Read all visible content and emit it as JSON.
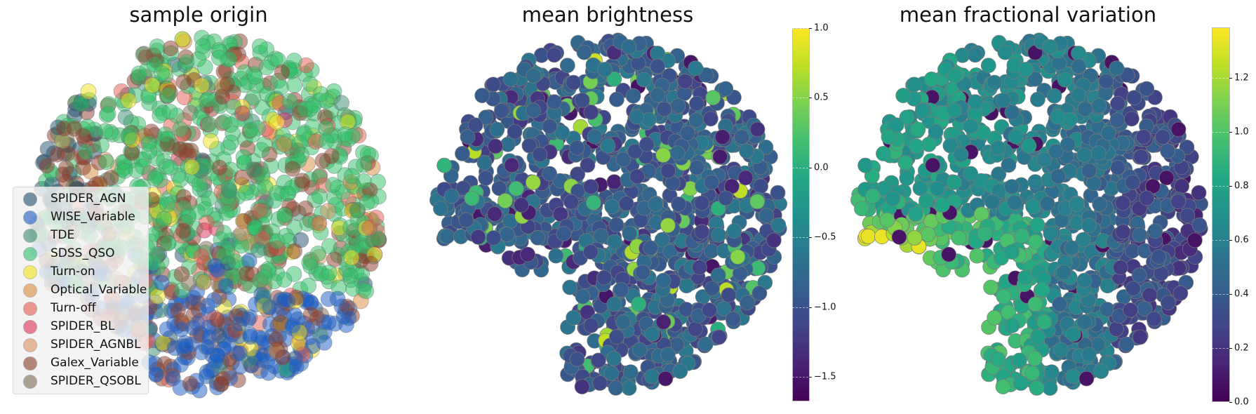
{
  "figure": {
    "panels": [
      {
        "title": "sample origin"
      },
      {
        "title": "mean brightness"
      },
      {
        "title": "mean fractional variation"
      }
    ]
  },
  "legend": {
    "items": [
      {
        "label": "SPIDER_AGN",
        "color": "#1f4e6e"
      },
      {
        "label": "WISE_Variable",
        "color": "#1a5cc4"
      },
      {
        "label": "TDE",
        "color": "#3a8a72"
      },
      {
        "label": "SDSS_QSO",
        "color": "#2fbf68"
      },
      {
        "label": "Turn-on",
        "color": "#f2e21a"
      },
      {
        "label": "Optical_Variable",
        "color": "#d98a3e"
      },
      {
        "label": "Turn-off",
        "color": "#e5594d"
      },
      {
        "label": "SPIDER_BL",
        "color": "#dc2f55"
      },
      {
        "label": "SPIDER_AGNBL",
        "color": "#d8915f"
      },
      {
        "label": "Galex_Variable",
        "color": "#8b3c28"
      },
      {
        "label": "SPIDER_QSOBL",
        "color": "#7d6b52"
      }
    ]
  },
  "colorbars": [
    {
      "ticks": [
        "1.0",
        "0.5",
        "0.0",
        "−0.5",
        "−1.0",
        "−1.5"
      ],
      "values": [
        1.0,
        0.5,
        0.0,
        -0.5,
        -1.0,
        -1.5
      ],
      "vmin": -1.676,
      "vmax": 1.0
    },
    {
      "ticks": [
        "1.2",
        "1.0",
        "0.8",
        "0.6",
        "0.4",
        "0.2",
        "0.0"
      ],
      "values": [
        1.2,
        1.0,
        0.8,
        0.6,
        0.4,
        0.2,
        0.0
      ],
      "vmin": 0.0,
      "vmax": 1.387
    }
  ],
  "chart_data": [
    {
      "type": "scatter",
      "title": "sample origin",
      "xlabel": "",
      "ylabel": "",
      "axes_visible": false,
      "grid": false,
      "legend_position": "lower left",
      "marker_alpha": 0.5,
      "series": [
        {
          "name": "SPIDER_AGN",
          "region": "upper-left rim"
        },
        {
          "name": "WISE_Variable",
          "region": "lower / bottom of cloud"
        },
        {
          "name": "TDE",
          "region": "scattered"
        },
        {
          "name": "SDSS_QSO",
          "region": "dominant, upper and right"
        },
        {
          "name": "Turn-on",
          "region": "scattered, denser lower-middle"
        },
        {
          "name": "Optical_Variable",
          "region": "scattered, few"
        },
        {
          "name": "Turn-off",
          "region": "scattered"
        },
        {
          "name": "SPIDER_BL",
          "region": "few"
        },
        {
          "name": "SPIDER_AGNBL",
          "region": "few"
        },
        {
          "name": "Galex_Variable",
          "region": "scattered throughout, many"
        },
        {
          "name": "SPIDER_QSOBL",
          "region": "few"
        }
      ]
    },
    {
      "type": "scatter",
      "title": "mean brightness",
      "colormap": "viridis",
      "colorbar": {
        "vmin": -1.676,
        "vmax": 1.0,
        "ticks": [
          1.0,
          0.5,
          0.0,
          -0.5,
          -1.0,
          -1.5
        ]
      },
      "axes_visible": false,
      "typical_value_range": [
        -1.0,
        0.0
      ],
      "note": "Mostly teal/blue values (~-0.8 to -0.2) with scattered outliers; few high (~0.8) in left arm"
    },
    {
      "type": "scatter",
      "title": "mean fractional variation",
      "colormap": "viridis",
      "colorbar": {
        "vmin": 0.0,
        "vmax": 1.387,
        "ticks": [
          1.2,
          1.0,
          0.8,
          0.6,
          0.4,
          0.2,
          0.0
        ]
      },
      "axes_visible": false,
      "note": "High values (~0.9-1.3) concentrated in lower-left arm; low values (~0.2-0.4) on right side"
    }
  ]
}
